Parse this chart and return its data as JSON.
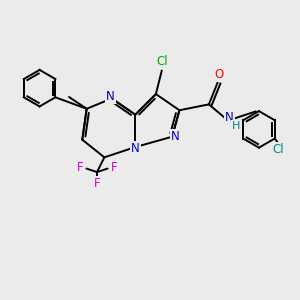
{
  "background_color": "#ebebeb",
  "bond_color": "#000000",
  "bond_lw": 1.4,
  "atom_colors": {
    "N": "#0000cc",
    "O": "#ff0000",
    "F": "#cc00cc",
    "Cl_green": "#00aa00",
    "Cl_teal": "#008888",
    "H": "#008888",
    "C": "#000000"
  },
  "font_size": 8.5
}
